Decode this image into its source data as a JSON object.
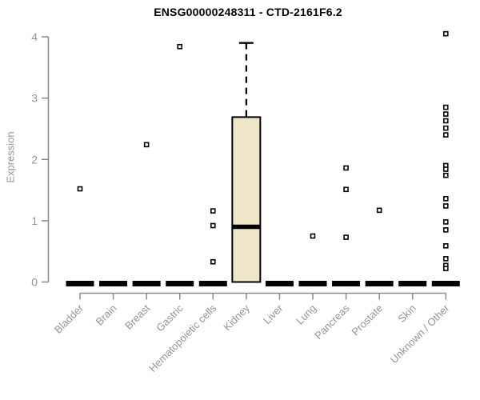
{
  "chart_data": {
    "type": "boxplot",
    "title": "ENSG00000248311 - CTD-2161F6.2",
    "ylabel": "Expression",
    "xlabel": "",
    "ylim": [
      0,
      4
    ],
    "yticks": [
      0,
      1,
      2,
      3,
      4
    ],
    "grid": false,
    "legend": null,
    "outlier_marker": "open-square",
    "colors": {
      "axis": "#8A8A8A",
      "label": "#949494",
      "title": "#000000",
      "box_fill": "#EDE6C8",
      "box_stroke": "#000000",
      "outlier_fill": "#FFFFFF"
    },
    "categories": [
      "Bladder",
      "Brain",
      "Breast",
      "Gastric",
      "Hematopoietic cells",
      "Kidney",
      "Liver",
      "Lung",
      "Pancreas",
      "Prostate",
      "Skin",
      "Unknown / Other"
    ],
    "boxes": [
      {
        "category": "Bladder",
        "q1": 0,
        "median": 0,
        "q3": 0,
        "whisker_low": 0,
        "whisker_high": 0,
        "outliers": [
          1.52
        ]
      },
      {
        "category": "Brain",
        "q1": 0,
        "median": 0,
        "q3": 0,
        "whisker_low": 0,
        "whisker_high": 0,
        "outliers": []
      },
      {
        "category": "Breast",
        "q1": 0,
        "median": 0,
        "q3": 0,
        "whisker_low": 0,
        "whisker_high": 0,
        "outliers": [
          2.24
        ]
      },
      {
        "category": "Gastric",
        "q1": 0,
        "median": 0,
        "q3": 0,
        "whisker_low": 0,
        "whisker_high": 0,
        "outliers": [
          3.84
        ]
      },
      {
        "category": "Hematopoietic cells",
        "q1": 0,
        "median": 0,
        "q3": 0,
        "whisker_low": 0,
        "whisker_high": 0,
        "outliers": [
          1.16,
          0.92,
          0.33
        ]
      },
      {
        "category": "Kidney",
        "q1": 0,
        "median": 0.9,
        "q3": 2.69,
        "whisker_low": 0,
        "whisker_high": 3.9,
        "outliers": []
      },
      {
        "category": "Liver",
        "q1": 0,
        "median": 0,
        "q3": 0,
        "whisker_low": 0,
        "whisker_high": 0,
        "outliers": []
      },
      {
        "category": "Lung",
        "q1": 0,
        "median": 0,
        "q3": 0,
        "whisker_low": 0,
        "whisker_high": 0,
        "outliers": [
          0.75
        ]
      },
      {
        "category": "Pancreas",
        "q1": 0,
        "median": 0,
        "q3": 0,
        "whisker_low": 0,
        "whisker_high": 0,
        "outliers": [
          1.86,
          1.51,
          0.73
        ]
      },
      {
        "category": "Prostate",
        "q1": 0,
        "median": 0,
        "q3": 0,
        "whisker_low": 0,
        "whisker_high": 0,
        "outliers": [
          1.17
        ]
      },
      {
        "category": "Skin",
        "q1": 0,
        "median": 0,
        "q3": 0,
        "whisker_low": 0,
        "whisker_high": 0,
        "outliers": []
      },
      {
        "category": "Unknown / Other",
        "q1": 0,
        "median": 0,
        "q3": 0,
        "whisker_low": 0,
        "whisker_high": 0,
        "outliers": [
          4.05,
          2.85,
          2.74,
          2.63,
          2.51,
          2.4,
          1.9,
          1.84,
          1.74,
          1.36,
          1.24,
          0.98,
          0.85,
          0.59,
          0.38,
          0.27,
          0.22
        ]
      }
    ]
  }
}
